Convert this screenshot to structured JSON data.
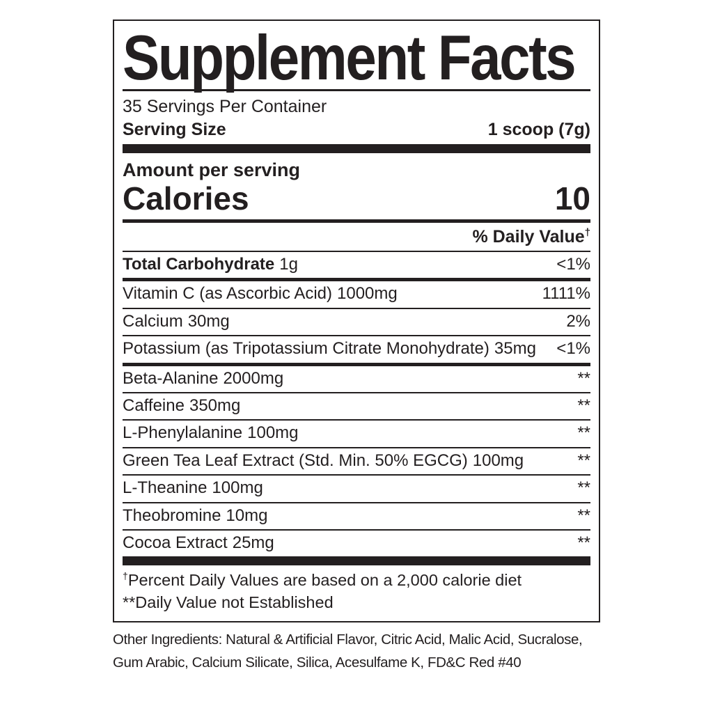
{
  "panel": {
    "title": "Supplement Facts",
    "servings_per_container": "35 Servings Per Container",
    "serving_size": {
      "label": "Serving Size",
      "value": "1 scoop (7g)"
    },
    "amount_per_serving": "Amount per serving",
    "calories": {
      "label": "Calories",
      "value": "10"
    },
    "daily_value_header": {
      "text": "% Daily Value",
      "sup": "†"
    },
    "rows": [
      {
        "name": "Total Carbohydrate",
        "amount": "1g",
        "dv": "<1%",
        "bold": true,
        "sep": "thin"
      },
      {
        "name": "Vitamin C (as Ascorbic Acid)",
        "amount": "1000mg",
        "dv": "1111%",
        "bold": false,
        "sep": "medium"
      },
      {
        "name": "Calcium",
        "amount": "30mg",
        "dv": "2%",
        "bold": false,
        "sep": "thin"
      },
      {
        "name": "Potassium (as Tripotassium Citrate Monohydrate)",
        "amount": "35mg",
        "dv": "<1%",
        "bold": false,
        "sep": "thin"
      },
      {
        "name": "Beta-Alanine",
        "amount": "2000mg",
        "dv": "**",
        "bold": false,
        "sep": "medium"
      },
      {
        "name": "Caffeine",
        "amount": "350mg",
        "dv": "**",
        "bold": false,
        "sep": "thin"
      },
      {
        "name": "L-Phenylalanine",
        "amount": "100mg",
        "dv": "**",
        "bold": false,
        "sep": "thin"
      },
      {
        "name": "Green Tea Leaf Extract (Std. Min. 50% EGCG)",
        "amount": "100mg",
        "dv": "**",
        "bold": false,
        "sep": "thin"
      },
      {
        "name": "L-Theanine",
        "amount": "100mg",
        "dv": "**",
        "bold": false,
        "sep": "thin"
      },
      {
        "name": "Theobromine",
        "amount": "10mg",
        "dv": "**",
        "bold": false,
        "sep": "thin"
      },
      {
        "name": "Cocoa Extract",
        "amount": "25mg",
        "dv": "**",
        "bold": false,
        "sep": "thin"
      }
    ],
    "footnotes": [
      {
        "sup": "†",
        "text": "Percent Daily Values are based on a 2,000 calorie diet"
      },
      {
        "sup": "**",
        "text": "Daily Value not Established"
      }
    ],
    "other_ingredients": {
      "line1": "Other Ingredients: Natural & Artificial Flavor, Citric Acid, Malic Acid, Sucralose,",
      "line2": "Gum Arabic, Calcium Silicate, Silica, Acesulfame K, FD&C Red #40"
    },
    "colors": {
      "ink": "#231f20",
      "background": "#ffffff"
    }
  }
}
